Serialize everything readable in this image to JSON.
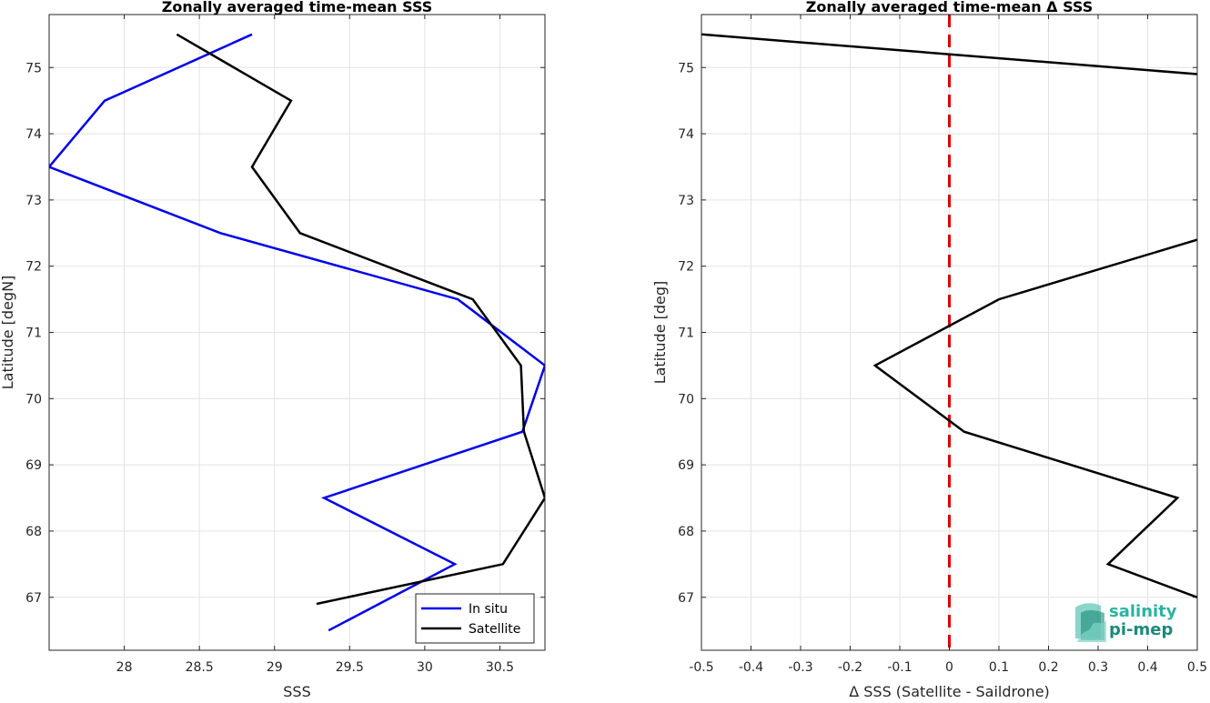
{
  "chart_data": [
    {
      "type": "line",
      "title": "Zonally averaged time-mean SSS",
      "xlabel": "SSS",
      "ylabel": "Latitude [degN]",
      "xlim": [
        27.5,
        30.8
      ],
      "ylim": [
        66.2,
        75.8
      ],
      "xticks": [
        28,
        28.5,
        29,
        29.5,
        30,
        30.5
      ],
      "xtick_labels": [
        "28",
        "28.5",
        "29",
        "29.5",
        "30",
        "30.5"
      ],
      "yticks": [
        67,
        68,
        69,
        70,
        71,
        72,
        73,
        74,
        75
      ],
      "ytick_labels": [
        "67",
        "68",
        "69",
        "70",
        "71",
        "72",
        "73",
        "74",
        "75"
      ],
      "grid": true,
      "legend_position": "bottom-right",
      "series": [
        {
          "name": "In situ",
          "color": "#0000ee",
          "x": [
            29.36,
            30.2,
            29.33,
            30.65,
            30.8,
            30.22,
            28.64,
            27.5,
            27.87,
            28.85
          ],
          "y": [
            66.5,
            67.5,
            68.5,
            69.5,
            70.5,
            71.5,
            72.5,
            73.5,
            74.5,
            75.5
          ]
        },
        {
          "name": "Satellite",
          "color": "#000000",
          "x": [
            29.28,
            30.52,
            30.8,
            30.66,
            30.64,
            30.32,
            29.17,
            28.85,
            29.11,
            28.35
          ],
          "y": [
            66.9,
            67.5,
            68.5,
            69.5,
            70.5,
            71.5,
            72.5,
            73.5,
            74.5,
            75.5
          ]
        }
      ]
    },
    {
      "type": "line",
      "title": "Zonally averaged time-mean Δ SSS",
      "xlabel": "Δ SSS (Satellite - Saildrone)",
      "ylabel": "Latitude [deg]",
      "xlim": [
        -0.5,
        0.5
      ],
      "ylim": [
        66.2,
        75.8
      ],
      "xticks": [
        -0.5,
        -0.4,
        -0.3,
        -0.2,
        -0.1,
        0,
        0.1,
        0.2,
        0.3,
        0.4,
        0.5
      ],
      "xtick_labels": [
        "-0.5",
        "-0.4",
        "-0.3",
        "-0.2",
        "-0.1",
        "0",
        "0.1",
        "0.2",
        "0.3",
        "0.4",
        "0.5"
      ],
      "yticks": [
        67,
        68,
        69,
        70,
        71,
        72,
        73,
        74,
        75
      ],
      "ytick_labels": [
        "67",
        "68",
        "69",
        "70",
        "71",
        "72",
        "73",
        "74",
        "75"
      ],
      "grid": true,
      "reference_line": {
        "x": 0,
        "color": "#e00000",
        "style": "dashed"
      },
      "series": [
        {
          "color": "#000000",
          "x": [
            0.5,
            0.32,
            0.46,
            0.03,
            -0.15,
            0.1,
            0.5
          ],
          "y": [
            67.0,
            67.5,
            68.5,
            69.5,
            70.5,
            71.5,
            72.4
          ]
        },
        {
          "color": "#000000",
          "x": [
            0.5,
            -0.5
          ],
          "y": [
            74.9,
            75.5
          ]
        }
      ]
    }
  ],
  "logo": {
    "line1": "salinity",
    "line2": "pi-mep",
    "color_dark": "#1a8a7a",
    "color_light": "#2bb3a0"
  }
}
